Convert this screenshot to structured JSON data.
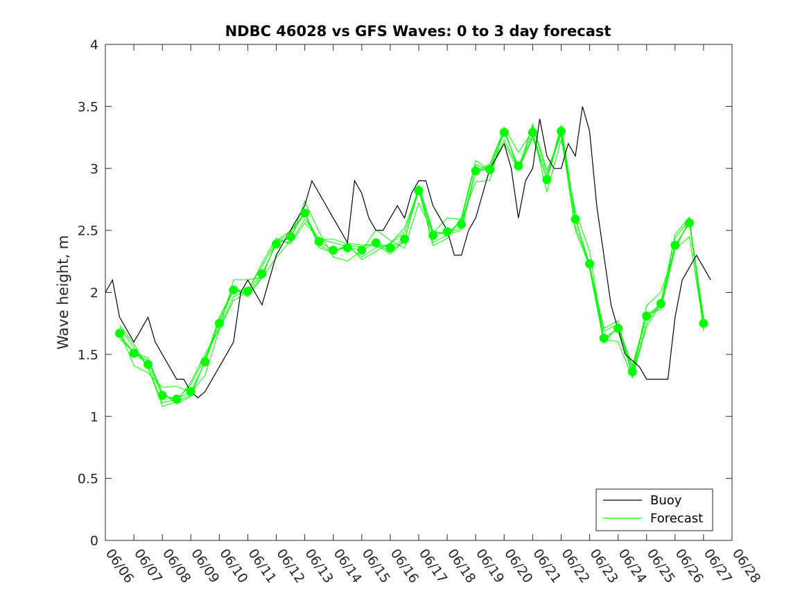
{
  "chart_data": {
    "type": "line",
    "title": "NDBC 46028 vs GFS Waves: 0 to 3 day forecast",
    "xlabel": "",
    "ylabel": "Wave height, m",
    "xlim": [
      "06/06",
      "06/28"
    ],
    "ylim": [
      0,
      4
    ],
    "x_ticks": [
      "06/06",
      "06/07",
      "06/08",
      "06/09",
      "06/10",
      "06/11",
      "06/12",
      "06/13",
      "06/14",
      "06/15",
      "06/16",
      "06/17",
      "06/18",
      "06/19",
      "06/20",
      "06/21",
      "06/22",
      "06/23",
      "06/24",
      "06/25",
      "06/26",
      "06/27",
      "06/28"
    ],
    "y_ticks": [
      "0",
      "0.5",
      "1",
      "1.5",
      "2",
      "2.5",
      "3",
      "3.5",
      "4"
    ],
    "grid": false,
    "legend": {
      "position": "bottom-right",
      "entries": [
        "Buoy",
        "Forecast"
      ]
    },
    "colors": {
      "buoy": "#000000",
      "forecast": "#00ff00",
      "axes": "#262626"
    },
    "series": [
      {
        "name": "Buoy",
        "x": [
          "06/06 00:00",
          "06/06 06:00",
          "06/06 12:00",
          "06/06 18:00",
          "06/07 00:00",
          "06/07 06:00",
          "06/07 12:00",
          "06/07 18:00",
          "06/08 00:00",
          "06/08 06:00",
          "06/08 12:00",
          "06/08 18:00",
          "06/09 00:00",
          "06/09 06:00",
          "06/09 12:00",
          "06/09 18:00",
          "06/10 00:00",
          "06/10 06:00",
          "06/10 12:00",
          "06/10 18:00",
          "06/11 00:00",
          "06/11 06:00",
          "06/11 12:00",
          "06/11 18:00",
          "06/12 00:00",
          "06/12 06:00",
          "06/12 12:00",
          "06/12 18:00",
          "06/13 00:00",
          "06/13 06:00",
          "06/13 12:00",
          "06/13 18:00",
          "06/14 00:00",
          "06/14 06:00",
          "06/14 12:00",
          "06/14 18:00",
          "06/15 00:00",
          "06/15 06:00",
          "06/15 12:00",
          "06/15 18:00",
          "06/16 00:00",
          "06/16 06:00",
          "06/16 12:00",
          "06/16 18:00",
          "06/17 00:00",
          "06/17 06:00",
          "06/17 12:00",
          "06/17 18:00",
          "06/18 00:00",
          "06/18 06:00",
          "06/18 12:00",
          "06/18 18:00",
          "06/19 00:00",
          "06/19 06:00",
          "06/19 12:00",
          "06/19 18:00",
          "06/20 00:00",
          "06/20 06:00",
          "06/20 12:00",
          "06/20 18:00",
          "06/21 00:00",
          "06/21 06:00",
          "06/21 12:00",
          "06/21 18:00",
          "06/22 00:00",
          "06/22 06:00",
          "06/22 12:00",
          "06/22 18:00",
          "06/23 00:00",
          "06/23 06:00",
          "06/23 12:00",
          "06/23 18:00",
          "06/24 00:00",
          "06/24 06:00",
          "06/24 12:00",
          "06/24 18:00",
          "06/25 00:00",
          "06/25 06:00",
          "06/25 12:00",
          "06/25 18:00",
          "06/26 00:00",
          "06/26 06:00",
          "06/26 12:00",
          "06/26 18:00",
          "06/27 00:00",
          "06/27 06:00"
        ],
        "values": [
          2.0,
          2.1,
          1.8,
          1.7,
          1.6,
          1.7,
          1.8,
          1.6,
          1.5,
          1.4,
          1.3,
          1.3,
          1.2,
          1.15,
          1.2,
          1.3,
          1.4,
          1.5,
          1.6,
          2.0,
          2.1,
          2.0,
          1.9,
          2.1,
          2.3,
          2.4,
          2.5,
          2.6,
          2.7,
          2.9,
          2.8,
          2.7,
          2.6,
          2.5,
          2.4,
          2.9,
          2.8,
          2.6,
          2.5,
          2.5,
          2.6,
          2.7,
          2.6,
          2.8,
          2.9,
          2.9,
          2.7,
          2.6,
          2.5,
          2.3,
          2.3,
          2.5,
          2.6,
          2.8,
          3.0,
          3.1,
          3.2,
          3.0,
          2.6,
          2.9,
          3.0,
          3.4,
          3.1,
          3.0,
          3.0,
          3.2,
          3.1,
          3.5,
          3.3,
          2.7,
          2.3,
          1.9,
          1.7,
          1.5,
          1.45,
          1.4,
          1.3,
          1.3,
          1.3,
          1.3,
          1.8,
          2.1,
          2.2,
          2.3,
          2.2,
          2.1
        ]
      },
      {
        "name": "Forecast",
        "x": [
          "06/06 12:00",
          "06/07 00:00",
          "06/07 12:00",
          "06/08 00:00",
          "06/08 12:00",
          "06/09 00:00",
          "06/09 12:00",
          "06/10 00:00",
          "06/10 12:00",
          "06/11 00:00",
          "06/11 12:00",
          "06/12 00:00",
          "06/12 12:00",
          "06/13 00:00",
          "06/13 12:00",
          "06/14 00:00",
          "06/14 12:00",
          "06/15 00:00",
          "06/15 12:00",
          "06/16 00:00",
          "06/16 12:00",
          "06/17 00:00",
          "06/17 12:00",
          "06/18 00:00",
          "06/18 12:00",
          "06/19 00:00",
          "06/19 12:00",
          "06/20 00:00",
          "06/20 12:00",
          "06/21 00:00",
          "06/21 12:00",
          "06/22 00:00",
          "06/22 12:00",
          "06/23 00:00",
          "06/23 12:00",
          "06/24 00:00",
          "06/24 12:00",
          "06/25 00:00",
          "06/25 12:00",
          "06/26 00:00",
          "06/26 12:00",
          "06/27 00:00"
        ],
        "values": [
          1.67,
          1.51,
          1.42,
          1.17,
          1.14,
          1.2,
          1.44,
          1.75,
          2.02,
          2.01,
          2.15,
          2.39,
          2.45,
          2.64,
          2.41,
          2.34,
          2.36,
          2.34,
          2.4,
          2.36,
          2.43,
          2.82,
          2.46,
          2.49,
          2.55,
          2.98,
          2.99,
          3.29,
          3.02,
          3.29,
          2.91,
          3.3,
          2.59,
          2.23,
          1.63,
          1.71,
          1.36,
          1.81,
          1.91,
          2.38,
          2.56,
          1.75
        ]
      }
    ]
  }
}
